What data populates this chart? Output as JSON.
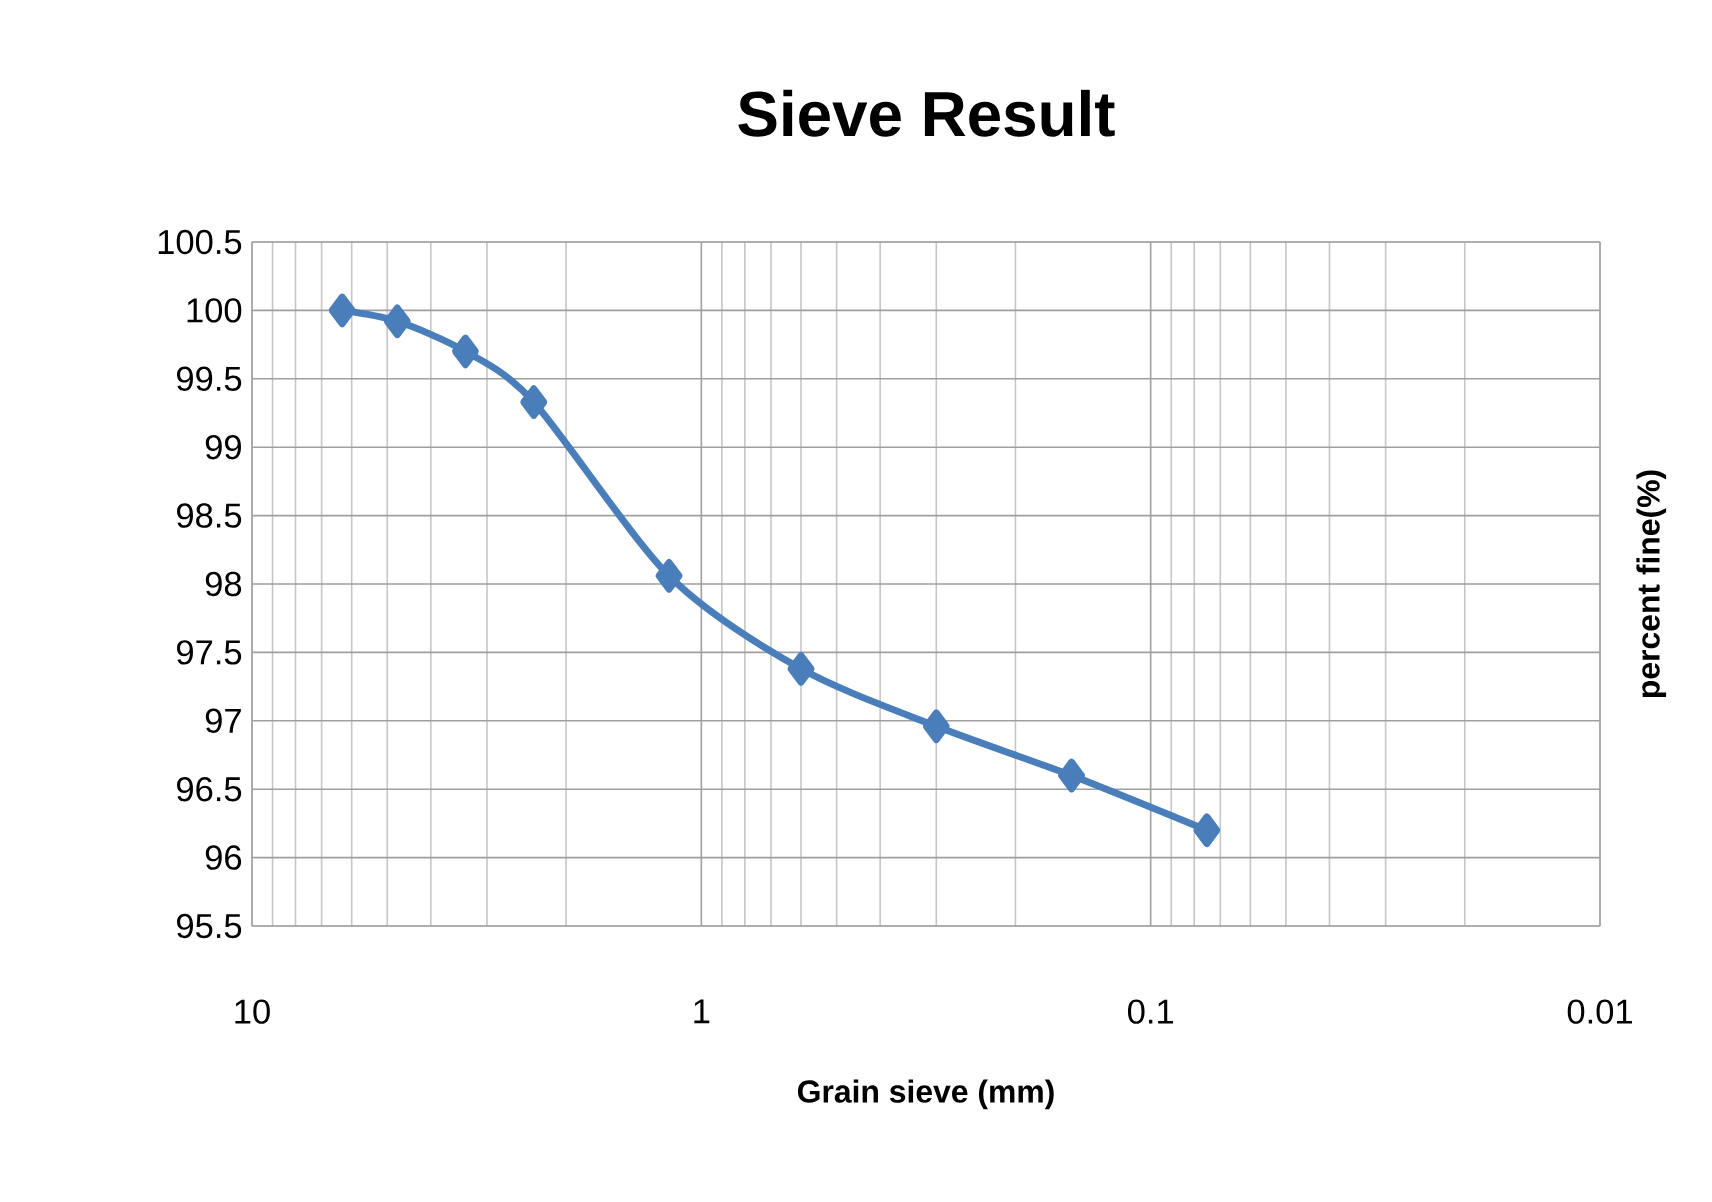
{
  "chart_data": {
    "type": "line",
    "title": "Sieve Result",
    "xlabel": "Grain sieve (mm)",
    "ylabel": "percent fine(%)",
    "x": [
      6.3,
      4.75,
      3.35,
      2.36,
      1.18,
      0.6,
      0.3,
      0.15,
      0.075
    ],
    "series": [
      {
        "color": "#4a7ebb",
        "values": [
          100,
          99.92,
          99.7,
          99.33,
          98.06,
          97.38,
          96.96,
          96.6,
          96.2
        ]
      }
    ],
    "log": "x",
    "xlim": [
      10,
      0.01
    ],
    "xticks": [
      10,
      1,
      0.1,
      0.01
    ],
    "ylim": [
      95.5,
      100.5
    ],
    "yticks": [
      95.5,
      96,
      96.5,
      97,
      97.5,
      98,
      98.5,
      99,
      99.5,
      100,
      100.5
    ],
    "grid": true,
    "marker": "diamond",
    "line_style": "solid"
  }
}
